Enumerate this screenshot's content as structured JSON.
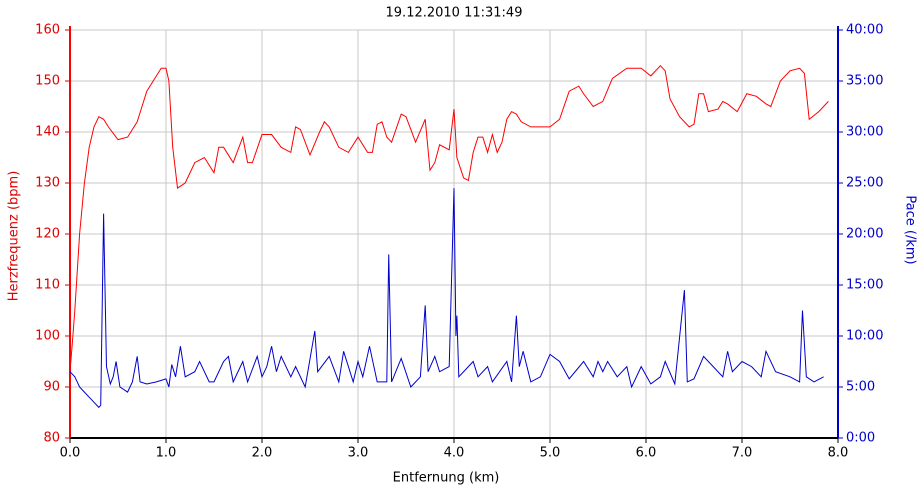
{
  "chart_data": {
    "type": "line",
    "title": "19.12.2010 11:31:49",
    "xlabel": "Entfernung (km)",
    "ylabel": "Herzfrequenz (bpm)",
    "y2label": "Pace (/km)",
    "xlim": [
      0,
      8
    ],
    "xticks": [
      {
        "value": 0,
        "label": "0.0"
      },
      {
        "value": 1,
        "label": "1.0"
      },
      {
        "value": 2,
        "label": "2.0"
      },
      {
        "value": 3,
        "label": "3.0"
      },
      {
        "value": 4,
        "label": "4.0"
      },
      {
        "value": 5,
        "label": "5.0"
      },
      {
        "value": 6,
        "label": "6.0"
      },
      {
        "value": 7,
        "label": "7.0"
      },
      {
        "value": 8,
        "label": "8.0"
      }
    ],
    "ylim": [
      80,
      160
    ],
    "yticks": [
      80,
      90,
      100,
      110,
      120,
      130,
      140,
      150,
      160
    ],
    "y2lim": [
      0,
      40
    ],
    "y2ticks": [
      {
        "value": 0,
        "label": "0:00"
      },
      {
        "value": 5,
        "label": "5:00"
      },
      {
        "value": 10,
        "label": "10:00"
      },
      {
        "value": 15,
        "label": "15:00"
      },
      {
        "value": 20,
        "label": "20:00"
      },
      {
        "value": 25,
        "label": "25:00"
      },
      {
        "value": 30,
        "label": "30:00"
      },
      {
        "value": 35,
        "label": "35:00"
      },
      {
        "value": 40,
        "label": "40:00"
      }
    ],
    "grid": true,
    "series": [
      {
        "color": "#ff0000",
        "axis": "y",
        "x": [
          0,
          0.03,
          0.05,
          0.1,
          0.15,
          0.2,
          0.25,
          0.3,
          0.35,
          0.4,
          0.5,
          0.6,
          0.7,
          0.75,
          0.8,
          0.9,
          0.95,
          1.0,
          1.03,
          1.07,
          1.12,
          1.2,
          1.3,
          1.4,
          1.5,
          1.55,
          1.6,
          1.7,
          1.8,
          1.85,
          1.9,
          2.0,
          2.1,
          2.2,
          2.3,
          2.35,
          2.4,
          2.5,
          2.6,
          2.65,
          2.7,
          2.8,
          2.9,
          3.0,
          3.1,
          3.15,
          3.2,
          3.25,
          3.3,
          3.35,
          3.45,
          3.5,
          3.6,
          3.7,
          3.75,
          3.8,
          3.85,
          3.95,
          4.0,
          4.03,
          4.1,
          4.15,
          4.2,
          4.25,
          4.3,
          4.35,
          4.4,
          4.45,
          4.5,
          4.55,
          4.6,
          4.65,
          4.7,
          4.8,
          4.9,
          5.0,
          5.1,
          5.2,
          5.3,
          5.35,
          5.45,
          5.55,
          5.65,
          5.8,
          5.95,
          6.05,
          6.15,
          6.2,
          6.25,
          6.35,
          6.45,
          6.5,
          6.55,
          6.6,
          6.65,
          6.75,
          6.8,
          6.85,
          6.95,
          7.05,
          7.15,
          7.25,
          7.3,
          7.4,
          7.5,
          7.6,
          7.65,
          7.7,
          7.8,
          7.9
        ],
        "values": [
          93,
          100,
          105,
          120,
          130,
          137,
          141,
          143,
          142.5,
          141,
          138.5,
          139,
          142,
          145,
          148,
          151,
          152.5,
          152.5,
          150,
          137,
          129,
          130,
          134,
          135,
          132,
          137,
          137,
          134,
          139,
          134,
          134,
          139.5,
          139.5,
          137,
          136,
          141,
          140.5,
          135.5,
          140,
          142,
          141,
          137,
          136,
          139,
          136,
          136,
          141.5,
          142,
          139,
          138,
          143.5,
          143,
          138,
          142.5,
          132.5,
          134,
          137.5,
          136.5,
          144.5,
          135,
          131,
          130.5,
          136,
          139,
          139,
          136,
          139.5,
          136,
          138,
          142.5,
          144,
          143.5,
          142,
          141,
          141,
          141,
          142.5,
          148,
          149,
          147.5,
          145,
          146,
          150.5,
          152.5,
          152.5,
          151,
          153,
          152,
          146.5,
          143,
          141,
          141.5,
          147.5,
          147.5,
          144,
          144.5,
          146,
          145.5,
          144,
          147.5,
          147,
          145.5,
          145,
          150,
          152,
          152.5,
          151.5,
          142.5,
          144,
          146
        ]
      },
      {
        "color": "#0000cc",
        "axis": "y2",
        "x": [
          0,
          0.05,
          0.1,
          0.15,
          0.2,
          0.25,
          0.3,
          0.32,
          0.35,
          0.38,
          0.42,
          0.45,
          0.48,
          0.52,
          0.6,
          0.65,
          0.7,
          0.73,
          0.8,
          0.9,
          1.0,
          1.03,
          1.06,
          1.1,
          1.15,
          1.2,
          1.3,
          1.35,
          1.45,
          1.5,
          1.6,
          1.65,
          1.7,
          1.8,
          1.85,
          1.95,
          2.0,
          2.05,
          2.1,
          2.15,
          2.2,
          2.3,
          2.35,
          2.45,
          2.55,
          2.58,
          2.7,
          2.8,
          2.85,
          2.95,
          3.0,
          3.05,
          3.12,
          3.2,
          3.3,
          3.32,
          3.35,
          3.45,
          3.55,
          3.65,
          3.7,
          3.73,
          3.8,
          3.85,
          3.95,
          4.0,
          4.02,
          4.03,
          4.05,
          4.15,
          4.2,
          4.25,
          4.35,
          4.4,
          4.55,
          4.6,
          4.65,
          4.68,
          4.72,
          4.8,
          4.9,
          5.0,
          5.1,
          5.2,
          5.35,
          5.45,
          5.5,
          5.55,
          5.6,
          5.7,
          5.8,
          5.85,
          5.95,
          6.05,
          6.15,
          6.2,
          6.3,
          6.4,
          6.43,
          6.5,
          6.6,
          6.7,
          6.8,
          6.85,
          6.9,
          7.0,
          7.1,
          7.2,
          7.25,
          7.35,
          7.5,
          7.6,
          7.63,
          7.67,
          7.75,
          7.85
        ],
        "values": [
          6.5,
          6,
          5,
          4.5,
          4,
          3.5,
          3,
          3.2,
          22,
          7,
          5.3,
          6,
          7.5,
          5,
          4.5,
          5.5,
          8,
          5.5,
          5.3,
          5.5,
          5.8,
          5,
          7.2,
          6,
          9,
          6,
          6.5,
          7.5,
          5.5,
          5.5,
          7.5,
          8,
          5.5,
          7.5,
          5.5,
          8,
          6,
          7,
          9,
          6.5,
          8,
          6,
          7,
          5,
          10.5,
          6.5,
          8,
          5.5,
          8.5,
          5.5,
          7.5,
          6,
          9,
          5.5,
          5.5,
          18,
          5.5,
          7.8,
          5,
          6,
          13,
          6.5,
          8,
          6.5,
          7,
          24.5,
          10,
          12,
          6,
          7,
          7.5,
          6,
          7,
          5.5,
          7.5,
          5.5,
          12,
          7,
          8.5,
          5.5,
          6,
          8.2,
          7.5,
          5.8,
          7.5,
          6,
          7.5,
          6.5,
          7.5,
          6,
          7,
          5,
          7,
          5.3,
          6,
          7.5,
          5.3,
          14.5,
          5.5,
          5.8,
          8,
          7,
          6,
          8.5,
          6.5,
          7.5,
          7,
          6,
          8.5,
          6.5,
          6,
          5.5,
          12.5,
          6,
          5.5,
          6
        ]
      }
    ]
  }
}
